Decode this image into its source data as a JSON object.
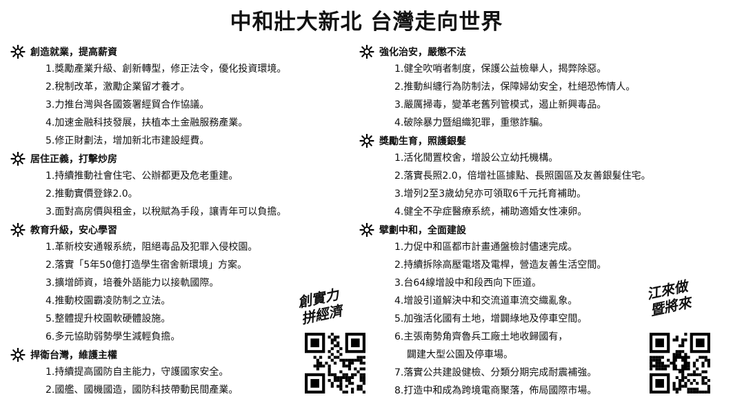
{
  "title": "中和壯大新北  台灣走向世界",
  "left_column": [
    {
      "heading": "創造就業，提高薪資",
      "items": [
        "1.獎勵產業升級、創新轉型，修正法令，優化投資環境。",
        "2.稅制改革，激勵企業留才養才。",
        "3.力推台灣與各國簽署經貿合作協議。",
        "4.加速金融科技發展，扶植本土金融服務產業。",
        "5.修正財劃法，增加新北市建設經費。"
      ]
    },
    {
      "heading": "居住正義，打擊炒房",
      "items": [
        "1.持續推動社會住宅、公辦都更及危老重建。",
        "2.推動實價登錄2.0。",
        "3.面對高房價與租金，以稅賦為手段，讓青年可以負擔。"
      ]
    },
    {
      "heading": "教育升級，安心學習",
      "items": [
        "1.革新校安通報系統，阻絕毒品及犯罪入侵校園。",
        "2.落實「5年50億打造學生宿舍新環境」方案。",
        "3.擴增師資，培養外語能力以接軌國際。",
        "4.推動校園霸凌防制之立法。",
        "5.整體提升校園軟硬體設施。",
        "6.多元協助弱勢學生減輕負擔。"
      ]
    },
    {
      "heading": "捍衛台灣，維護主權",
      "items": [
        "1.持續提高國防自主能力，守護國家安全。",
        "2.國艦、國機國造，國防科技帶動民間產業。"
      ]
    }
  ],
  "right_column": [
    {
      "heading": "強化治安，嚴懲不法",
      "items": [
        "1.健全吹哨者制度，保護公益檢舉人，揭弊除惡。",
        "2.推動糾纏行為防制法，保障婦幼安全，杜絕恐怖情人。",
        "3.嚴厲掃毒，變革老舊列管模式，遏止新興毒品。",
        "4.破除暴力暨組織犯罪，重懲詐騙。"
      ]
    },
    {
      "heading": "獎勵生育，照護銀髮",
      "items": [
        "1.活化閒置校舍，增設公立幼托機構。",
        "2.落實長照2.0，倍增社區據點、長照園區及友善銀髮住宅。",
        "3.增列2至3歲幼兒亦可領取6千元托育補助。",
        "4.健全不孕症醫療系統，補助適婚女性凍卵。"
      ]
    },
    {
      "heading": "擘劃中和，全面建設",
      "items": [
        "1.力促中和區都市計畫通盤檢討儘速完成。",
        "2.持續拆除高壓電塔及電桿，營造友善生活空間。",
        "3.台64線增設中和段西向下匝道。",
        "4.增設引道解決中和交流道車流交織亂象。",
        "5.加強活化國有土地，增闢綠地及停車空間。",
        "6.主張南勢角齊魯兵工廠土地收歸國有，",
        "闢建大型公園及停車場。",
        "7.落實公共建設健檢、分類分期完成耐震補強。",
        "8.打造中和成為跨境電商聚落，佈局國際市場。"
      ]
    }
  ],
  "slogan_left": [
    "創實力",
    "拼經濟"
  ],
  "slogan_right": [
    "江來做",
    "暨將來"
  ],
  "icons": {
    "heading_icon": "sun-burst-icon",
    "qr_icon": "qr-code-icon",
    "facebook_icon": "facebook-icon"
  }
}
